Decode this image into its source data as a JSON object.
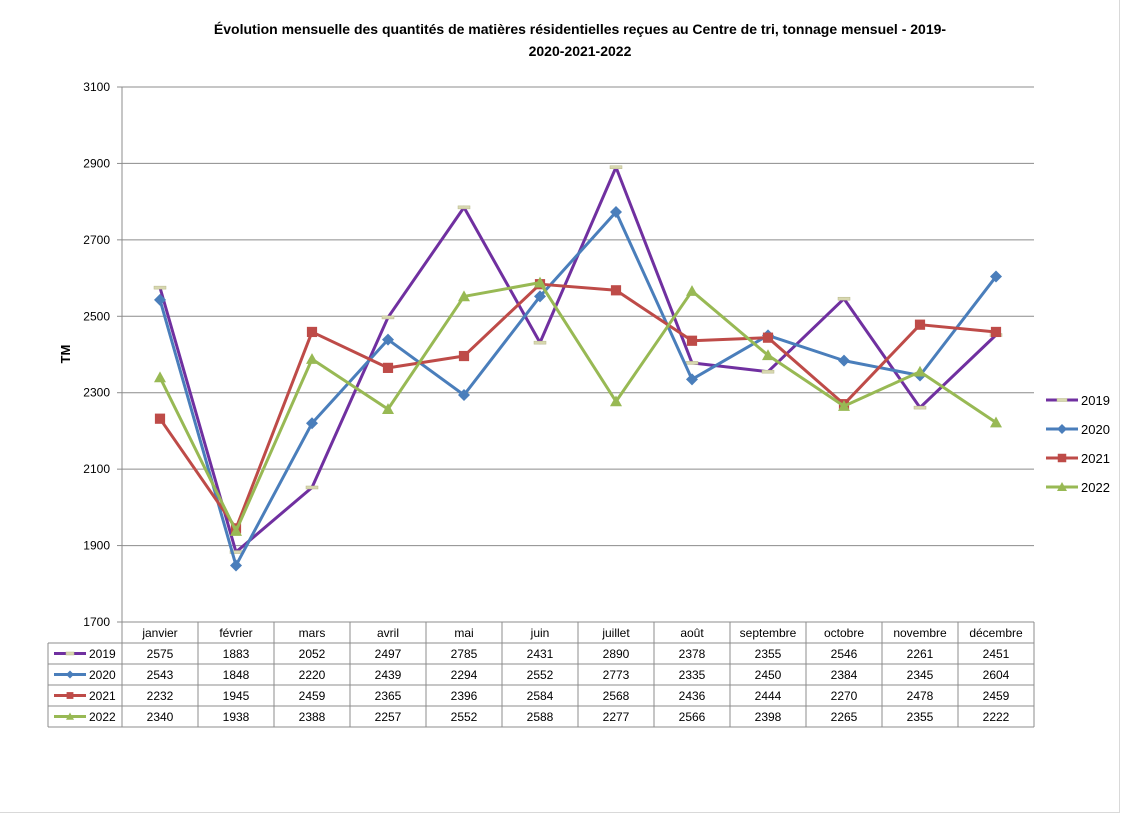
{
  "chart_data": {
    "type": "line",
    "title_line1": "Évolution mensuelle des quantités de matières résidentielles reçues au Centre de tri, tonnage mensuel -  2019-",
    "title_line2": "2020-2021-2022",
    "ylabel": "TM",
    "xlabel": "",
    "ylim": [
      1700,
      3100
    ],
    "yticks": [
      "1700",
      "1900",
      "2100",
      "2300",
      "2500",
      "2700",
      "2900",
      "3100"
    ],
    "grid": true,
    "legend_position": "right",
    "categories": [
      "janvier",
      "février",
      "mars",
      "avril",
      "mai",
      "juin",
      "juillet",
      "août",
      "septembre",
      "octobre",
      "novembre",
      "décembre"
    ],
    "series": [
      {
        "name": "2019",
        "color": "#7030A0",
        "marker": "dash",
        "values": [
          2575,
          1883,
          2052,
          2497,
          2785,
          2431,
          2890,
          2378,
          2355,
          2546,
          2261,
          2451
        ],
        "labels": [
          "2575",
          "1883",
          "2052",
          "2497",
          "2785",
          "2431",
          "2890",
          "2378",
          "2355",
          "2546",
          "2261",
          "2451"
        ]
      },
      {
        "name": "2020",
        "color": "#4A7EBB",
        "marker": "diamond",
        "values": [
          2543,
          1848,
          2220,
          2439,
          2294,
          2552,
          2773,
          2335,
          2450,
          2384,
          2345,
          2604
        ],
        "labels": [
          "2543",
          "1848",
          "2220",
          "2439",
          "2294",
          "2552",
          "2773",
          "2335",
          "2450",
          "2384",
          "2345",
          "2604"
        ]
      },
      {
        "name": "2021",
        "color": "#BE4B48",
        "marker": "square",
        "values": [
          2232,
          1945,
          2459,
          2365,
          2396,
          2584,
          2568,
          2436,
          2444,
          2270,
          2478,
          2459
        ],
        "labels": [
          "2232",
          "1945",
          "2459",
          "2365",
          "2396",
          "2584",
          "2568",
          "2436",
          "2444",
          "2270",
          "2478",
          "2459"
        ]
      },
      {
        "name": "2022",
        "color": "#98B954",
        "marker": "triangle",
        "values": [
          2340,
          1938,
          2388,
          2257,
          2552,
          2588,
          2277,
          2566,
          2398,
          2265,
          2355,
          2222
        ],
        "labels": [
          "2340",
          "1938",
          "2388",
          "2257",
          "2552",
          "2588",
          "2277",
          "2566",
          "2398",
          "2265",
          "2355",
          "2222"
        ]
      }
    ]
  }
}
